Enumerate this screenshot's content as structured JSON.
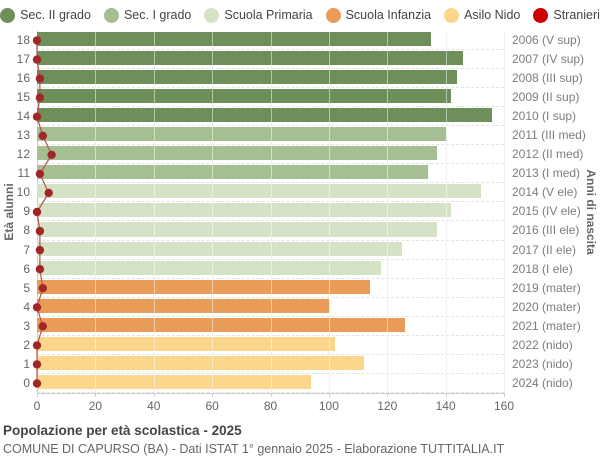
{
  "chart_data": {
    "type": "bar",
    "orientation": "horizontal",
    "title": "Popolazione per età scolastica - 2025",
    "subtitle": "COMUNE DI CAPURSO (BA) - Dati ISTAT 1° gennaio 2025 - Elaborazione TUTTITALIA.IT",
    "left_axis_title": "Età alunni",
    "right_axis_title": "Anni di nascita",
    "xlim": [
      0,
      160
    ],
    "x_ticks": [
      0,
      20,
      40,
      60,
      80,
      100,
      120,
      140,
      160
    ],
    "grid": true,
    "legend_position": "top",
    "legend": [
      {
        "name": "sec2",
        "label": "Sec. II grado",
        "color": "#6e8f5a"
      },
      {
        "name": "sec1",
        "label": "Sec. I grado",
        "color": "#a5bf93"
      },
      {
        "name": "primaria",
        "label": "Scuola Primaria",
        "color": "#d6e2c6"
      },
      {
        "name": "infanzia",
        "label": "Scuola Infanzia",
        "color": "#e99c57"
      },
      {
        "name": "nido",
        "label": "Asilo Nido",
        "color": "#fcd68a"
      },
      {
        "name": "stranieri",
        "label": "Stranieri",
        "color": "#cc0000"
      }
    ],
    "stranieri_style": {
      "dot_color": "#a12727",
      "line_color": "#b2544f"
    },
    "rows": [
      {
        "age": "18",
        "year": "2006 (V sup)",
        "group": "sec2",
        "value": 135,
        "stranieri": 0
      },
      {
        "age": "17",
        "year": "2007 (IV sup)",
        "group": "sec2",
        "value": 146,
        "stranieri": 0
      },
      {
        "age": "16",
        "year": "2008 (III sup)",
        "group": "sec2",
        "value": 144,
        "stranieri": 1
      },
      {
        "age": "15",
        "year": "2009 (II sup)",
        "group": "sec2",
        "value": 142,
        "stranieri": 1
      },
      {
        "age": "14",
        "year": "2010 (I sup)",
        "group": "sec2",
        "value": 156,
        "stranieri": 0
      },
      {
        "age": "13",
        "year": "2011 (III med)",
        "group": "sec1",
        "value": 140,
        "stranieri": 2
      },
      {
        "age": "12",
        "year": "2012 (II med)",
        "group": "sec1",
        "value": 137,
        "stranieri": 5
      },
      {
        "age": "11",
        "year": "2013 (I med)",
        "group": "sec1",
        "value": 134,
        "stranieri": 1
      },
      {
        "age": "10",
        "year": "2014 (V ele)",
        "group": "primaria",
        "value": 152,
        "stranieri": 4
      },
      {
        "age": "9",
        "year": "2015 (IV ele)",
        "group": "primaria",
        "value": 142,
        "stranieri": 0
      },
      {
        "age": "8",
        "year": "2016 (III ele)",
        "group": "primaria",
        "value": 137,
        "stranieri": 1
      },
      {
        "age": "7",
        "year": "2017 (II ele)",
        "group": "primaria",
        "value": 125,
        "stranieri": 1
      },
      {
        "age": "6",
        "year": "2018 (I ele)",
        "group": "primaria",
        "value": 118,
        "stranieri": 1
      },
      {
        "age": "5",
        "year": "2019 (mater)",
        "group": "infanzia",
        "value": 114,
        "stranieri": 2
      },
      {
        "age": "4",
        "year": "2020 (mater)",
        "group": "infanzia",
        "value": 100,
        "stranieri": 0
      },
      {
        "age": "3",
        "year": "2021 (mater)",
        "group": "infanzia",
        "value": 126,
        "stranieri": 2
      },
      {
        "age": "2",
        "year": "2022 (nido)",
        "group": "nido",
        "value": 102,
        "stranieri": 0
      },
      {
        "age": "1",
        "year": "2023 (nido)",
        "group": "nido",
        "value": 112,
        "stranieri": 0
      },
      {
        "age": "0",
        "year": "2024 (nido)",
        "group": "nido",
        "value": 94,
        "stranieri": 0
      }
    ]
  }
}
